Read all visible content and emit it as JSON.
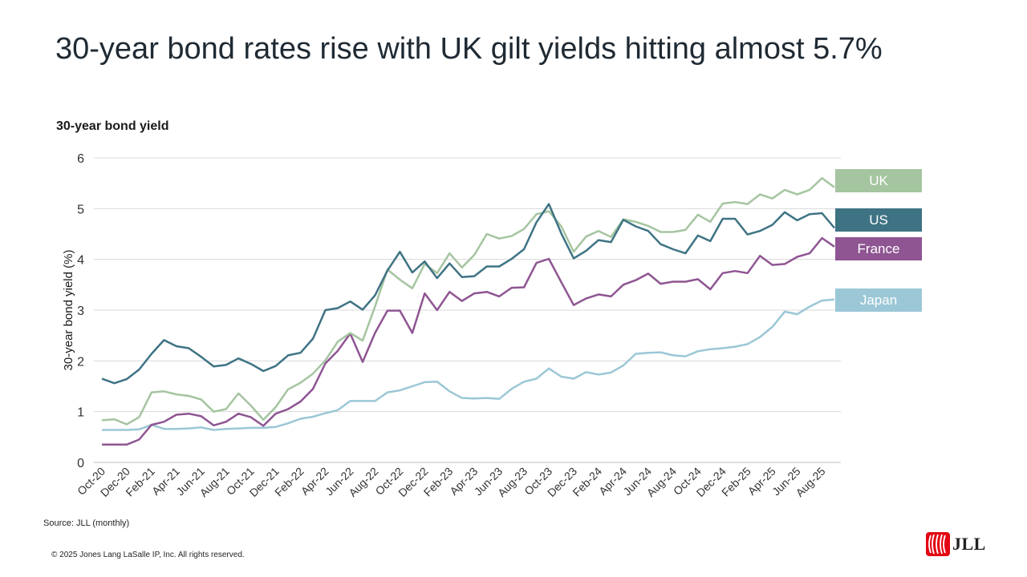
{
  "title": "30-year bond rates rise with UK gilt yields hitting almost 5.7%",
  "subtitle": "30-year bond yield",
  "source": "Source: JLL (monthly)",
  "copyright": "© 2025 Jones Lang LaSalle IP, Inc. All rights reserved.",
  "logo_text": "JLL",
  "colors": {
    "UK": "#a5c5a0",
    "US": "#3e7384",
    "France": "#8e5592",
    "Japan": "#9bc7d6"
  },
  "chart_data": {
    "type": "line",
    "title": "",
    "xlabel": "",
    "ylabel": "30-year bond yield (%)",
    "ylim": [
      0,
      6
    ],
    "yticks": [
      0,
      1,
      2,
      3,
      4,
      5,
      6
    ],
    "grid": true,
    "legend_position": "right, at series end",
    "x": [
      "Oct-20",
      "Nov-20",
      "Dec-20",
      "Jan-21",
      "Feb-21",
      "Mar-21",
      "Apr-21",
      "May-21",
      "Jun-21",
      "Jul-21",
      "Aug-21",
      "Sep-21",
      "Oct-21",
      "Nov-21",
      "Dec-21",
      "Jan-22",
      "Feb-22",
      "Mar-22",
      "Apr-22",
      "May-22",
      "Jun-22",
      "Jul-22",
      "Aug-22",
      "Sep-22",
      "Oct-22",
      "Nov-22",
      "Dec-22",
      "Jan-23",
      "Feb-23",
      "Mar-23",
      "Apr-23",
      "May-23",
      "Jun-23",
      "Jul-23",
      "Aug-23",
      "Sep-23",
      "Oct-23",
      "Nov-23",
      "Dec-23",
      "Jan-24",
      "Feb-24",
      "Mar-24",
      "Apr-24",
      "May-24",
      "Jun-24",
      "Jul-24",
      "Aug-24",
      "Sep-24",
      "Oct-24",
      "Nov-24",
      "Dec-24",
      "Jan-25",
      "Feb-25",
      "Mar-25",
      "Apr-25",
      "May-25",
      "Jun-25",
      "Jul-25",
      "Aug-25",
      "Sep-25"
    ],
    "x_tick_labels": [
      "Oct-20",
      "Dec-20",
      "Feb-21",
      "Apr-21",
      "Jun-21",
      "Aug-21",
      "Oct-21",
      "Dec-21",
      "Feb-22",
      "Apr-22",
      "Jun-22",
      "Aug-22",
      "Oct-22",
      "Dec-22",
      "Feb-23",
      "Apr-23",
      "Jun-23",
      "Aug-23",
      "Oct-23",
      "Dec-23",
      "Feb-24",
      "Apr-24",
      "Jun-24",
      "Aug-24",
      "Oct-24",
      "Dec-24",
      "Feb-25",
      "Apr-25",
      "Jun-25",
      "Aug-25"
    ],
    "series": [
      {
        "name": "UK",
        "values": [
          0.83,
          0.85,
          0.75,
          0.89,
          1.38,
          1.4,
          1.34,
          1.31,
          1.24,
          1.0,
          1.05,
          1.36,
          1.12,
          0.84,
          1.09,
          1.44,
          1.57,
          1.75,
          2.01,
          2.38,
          2.55,
          2.4,
          3.07,
          3.8,
          3.6,
          3.43,
          3.91,
          3.73,
          4.12,
          3.84,
          4.09,
          4.5,
          4.41,
          4.46,
          4.6,
          4.89,
          4.95,
          4.65,
          4.15,
          4.45,
          4.56,
          4.44,
          4.79,
          4.74,
          4.66,
          4.54,
          4.54,
          4.58,
          4.88,
          4.74,
          5.1,
          5.13,
          5.09,
          5.28,
          5.2,
          5.37,
          5.28,
          5.37,
          5.6,
          5.42
        ]
      },
      {
        "name": "US",
        "values": [
          1.65,
          1.56,
          1.64,
          1.83,
          2.14,
          2.41,
          2.29,
          2.25,
          2.08,
          1.89,
          1.92,
          2.05,
          1.94,
          1.8,
          1.9,
          2.11,
          2.16,
          2.44,
          3.0,
          3.04,
          3.17,
          3.01,
          3.29,
          3.78,
          4.15,
          3.74,
          3.96,
          3.63,
          3.92,
          3.65,
          3.67,
          3.86,
          3.86,
          4.01,
          4.2,
          4.73,
          5.09,
          4.51,
          4.02,
          4.17,
          4.38,
          4.34,
          4.78,
          4.65,
          4.56,
          4.3,
          4.2,
          4.12,
          4.47,
          4.36,
          4.8,
          4.8,
          4.49,
          4.56,
          4.68,
          4.93,
          4.77,
          4.89,
          4.91,
          4.62
        ]
      },
      {
        "name": "France",
        "values": [
          0.35,
          0.35,
          0.35,
          0.45,
          0.74,
          0.8,
          0.94,
          0.96,
          0.91,
          0.73,
          0.8,
          0.96,
          0.89,
          0.72,
          0.96,
          1.05,
          1.2,
          1.45,
          1.95,
          2.2,
          2.54,
          1.98,
          2.55,
          2.99,
          2.99,
          2.55,
          3.33,
          3.0,
          3.36,
          3.18,
          3.33,
          3.36,
          3.27,
          3.44,
          3.45,
          3.93,
          4.01,
          3.55,
          3.1,
          3.23,
          3.31,
          3.27,
          3.5,
          3.59,
          3.72,
          3.52,
          3.56,
          3.56,
          3.61,
          3.41,
          3.73,
          3.77,
          3.73,
          4.07,
          3.89,
          3.91,
          4.05,
          4.12,
          4.42,
          4.25
        ]
      },
      {
        "name": "Japan",
        "values": [
          0.64,
          0.64,
          0.64,
          0.65,
          0.74,
          0.66,
          0.66,
          0.67,
          0.69,
          0.64,
          0.66,
          0.67,
          0.68,
          0.68,
          0.7,
          0.77,
          0.86,
          0.9,
          0.97,
          1.03,
          1.21,
          1.21,
          1.21,
          1.38,
          1.42,
          1.5,
          1.58,
          1.59,
          1.4,
          1.27,
          1.26,
          1.27,
          1.25,
          1.45,
          1.59,
          1.65,
          1.85,
          1.69,
          1.65,
          1.78,
          1.73,
          1.77,
          1.91,
          2.14,
          2.16,
          2.17,
          2.11,
          2.09,
          2.19,
          2.23,
          2.25,
          2.28,
          2.33,
          2.47,
          2.67,
          2.97,
          2.92,
          3.07,
          3.19,
          3.21
        ]
      }
    ]
  }
}
